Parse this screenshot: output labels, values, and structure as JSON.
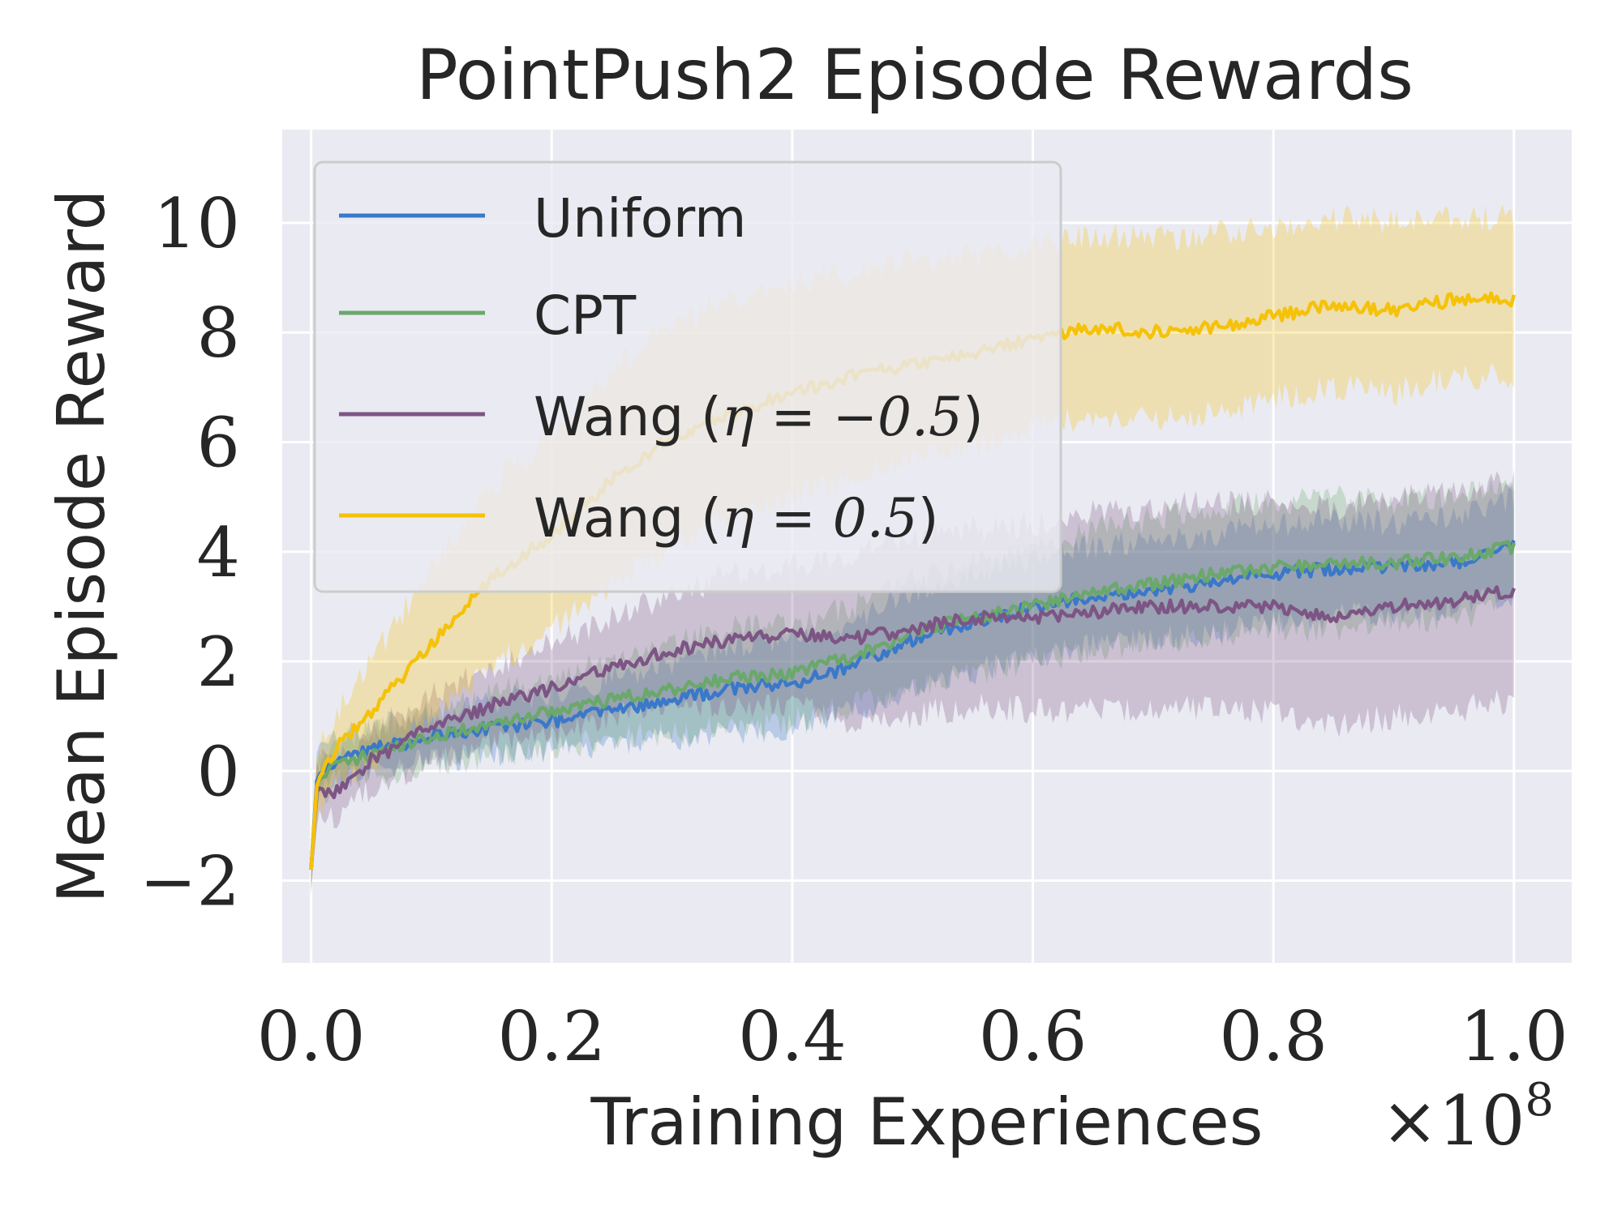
{
  "chart_data": {
    "type": "line",
    "title": "PointPush2 Episode Rewards",
    "xlabel": "Training Experiences",
    "ylabel": "Mean Episode Reward",
    "x_multiplier": "×10⁸",
    "x_multiplier_base": "×10",
    "x_multiplier_exp": "8",
    "xlim": [
      -0.024,
      1.048
    ],
    "ylim": [
      -3.5,
      11.7
    ],
    "xticks": [
      0.0,
      0.2,
      0.4,
      0.6,
      0.8,
      1.0
    ],
    "xtick_labels": [
      "0.0",
      "0.2",
      "0.4",
      "0.6",
      "0.8",
      "1.0"
    ],
    "yticks": [
      -2,
      0,
      2,
      4,
      6,
      8,
      10
    ],
    "ytick_labels": [
      "−2",
      "0",
      "2",
      "4",
      "6",
      "8",
      "10"
    ],
    "grid": true,
    "legend_position": "top-left",
    "x": [
      0.0,
      0.005,
      0.02,
      0.05,
      0.1,
      0.15,
      0.2,
      0.25,
      0.3,
      0.35,
      0.4,
      0.45,
      0.5,
      0.55,
      0.6,
      0.65,
      0.7,
      0.75,
      0.8,
      0.85,
      0.9,
      0.95,
      1.0
    ],
    "series": [
      {
        "label_prefix": "Uniform",
        "label_math": "",
        "color": "#3a78c9",
        "values": [
          -1.8,
          -0.1,
          0.2,
          0.4,
          0.6,
          0.8,
          0.9,
          1.1,
          1.3,
          1.5,
          1.6,
          1.9,
          2.4,
          2.7,
          3.0,
          3.2,
          3.3,
          3.4,
          3.6,
          3.7,
          3.7,
          3.8,
          4.1
        ],
        "lower": [
          -2.1,
          -0.4,
          -0.2,
          0.0,
          0.2,
          0.3,
          0.4,
          0.5,
          0.6,
          0.7,
          0.8,
          1.1,
          1.5,
          1.8,
          2.1,
          2.3,
          2.4,
          2.5,
          2.7,
          2.8,
          2.9,
          3.0,
          3.2
        ],
        "upper": [
          -1.5,
          0.2,
          0.6,
          0.8,
          1.0,
          1.3,
          1.4,
          1.7,
          2.0,
          2.3,
          2.4,
          2.7,
          3.3,
          3.6,
          3.9,
          4.1,
          4.2,
          4.3,
          4.5,
          4.6,
          4.5,
          4.6,
          5.0
        ]
      },
      {
        "label_prefix": "CPT",
        "label_math": "",
        "color": "#6aa86b",
        "values": [
          -1.8,
          -0.2,
          0.1,
          0.3,
          0.6,
          0.9,
          1.1,
          1.3,
          1.5,
          1.7,
          1.8,
          2.1,
          2.5,
          2.8,
          3.0,
          3.3,
          3.4,
          3.6,
          3.7,
          3.8,
          3.8,
          3.9,
          4.1
        ],
        "lower": [
          -2.2,
          -0.5,
          -0.2,
          -0.1,
          0.1,
          0.3,
          0.4,
          0.6,
          0.7,
          0.8,
          0.9,
          1.2,
          1.5,
          1.8,
          2.0,
          2.2,
          2.3,
          2.5,
          2.6,
          2.6,
          2.7,
          2.8,
          3.0
        ],
        "upper": [
          -1.4,
          0.1,
          0.5,
          0.7,
          1.1,
          1.4,
          1.7,
          2.0,
          2.3,
          2.6,
          2.7,
          3.0,
          3.5,
          3.8,
          4.0,
          4.4,
          4.6,
          4.8,
          4.9,
          5.0,
          4.9,
          5.0,
          5.2
        ]
      },
      {
        "label_prefix": "Wang (",
        "label_math": "η = −0.5",
        "color": "#7d5585",
        "values": [
          -1.8,
          -0.3,
          -0.4,
          0.2,
          0.8,
          1.2,
          1.5,
          1.9,
          2.2,
          2.4,
          2.5,
          2.4,
          2.6,
          2.8,
          2.8,
          2.9,
          3.0,
          3.0,
          3.0,
          2.8,
          3.0,
          3.1,
          3.3
        ],
        "lower": [
          -2.2,
          -0.8,
          -0.9,
          -0.3,
          0.2,
          0.5,
          0.7,
          1.0,
          1.2,
          1.2,
          1.2,
          0.9,
          1.0,
          1.2,
          1.1,
          1.1,
          1.2,
          1.1,
          1.1,
          0.8,
          1.0,
          1.1,
          1.3
        ],
        "upper": [
          -1.4,
          0.2,
          0.1,
          0.7,
          1.4,
          1.9,
          2.3,
          2.8,
          3.2,
          3.6,
          3.8,
          3.9,
          4.2,
          4.4,
          4.5,
          4.7,
          4.8,
          4.9,
          4.9,
          4.8,
          5.0,
          5.1,
          5.3
        ]
      },
      {
        "label_prefix": "Wang (",
        "label_math": "η = 0.5",
        "color": "#f5c20a",
        "values": [
          -1.8,
          -0.2,
          0.4,
          1.1,
          2.3,
          3.5,
          4.3,
          5.3,
          6.1,
          6.5,
          6.9,
          7.2,
          7.4,
          7.6,
          7.9,
          8.1,
          8.0,
          8.1,
          8.3,
          8.5,
          8.4,
          8.6,
          8.6
        ],
        "lower": [
          -2.3,
          -0.8,
          -0.2,
          0.2,
          1.0,
          1.9,
          2.6,
          3.4,
          4.1,
          4.6,
          5.0,
          5.4,
          5.7,
          5.9,
          6.3,
          6.5,
          6.4,
          6.5,
          6.8,
          7.0,
          6.9,
          7.2,
          7.2
        ],
        "upper": [
          -1.3,
          0.4,
          1.0,
          2.0,
          3.7,
          5.2,
          6.1,
          7.3,
          8.2,
          8.6,
          8.9,
          9.1,
          9.3,
          9.4,
          9.6,
          9.8,
          9.7,
          9.8,
          9.9,
          10.1,
          10.0,
          10.1,
          10.1
        ]
      }
    ]
  }
}
